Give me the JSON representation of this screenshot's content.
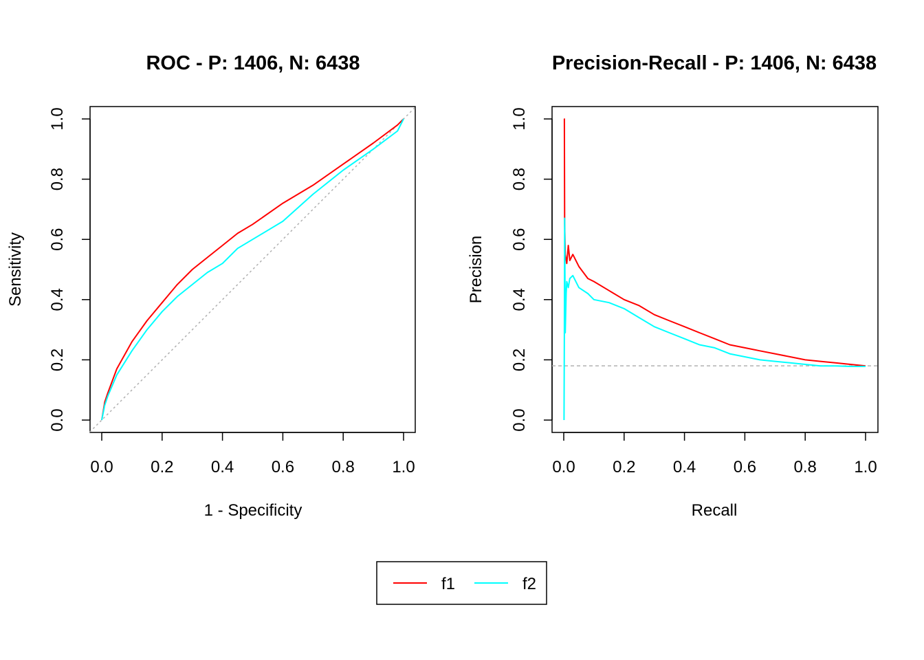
{
  "legend": {
    "entries": [
      {
        "name": "f1",
        "color": "#ff0000"
      },
      {
        "name": "f2",
        "color": "#00ffff"
      }
    ],
    "placement": "bottom-center"
  },
  "chart_data": [
    {
      "type": "line",
      "title": "ROC - P: 1406, N: 6438",
      "xlabel": "1 - Specificity",
      "ylabel": "Sensitivity",
      "xlim": [
        0,
        1
      ],
      "ylim": [
        0,
        1
      ],
      "xticks": [
        "0.0",
        "0.2",
        "0.4",
        "0.6",
        "0.8",
        "1.0"
      ],
      "yticks": [
        "0.0",
        "0.2",
        "0.4",
        "0.6",
        "0.8",
        "1.0"
      ],
      "grid": false,
      "reference_line": {
        "style": "dotted",
        "color": "#b0b0b0",
        "from": [
          0,
          0
        ],
        "to": [
          1,
          1
        ]
      },
      "series": [
        {
          "name": "f1",
          "color": "#ff0000",
          "x": [
            0,
            0.01,
            0.02,
            0.05,
            0.1,
            0.15,
            0.2,
            0.25,
            0.3,
            0.35,
            0.4,
            0.45,
            0.5,
            0.6,
            0.7,
            0.8,
            0.9,
            0.98,
            1
          ],
          "y": [
            0,
            0.06,
            0.09,
            0.17,
            0.26,
            0.33,
            0.39,
            0.45,
            0.5,
            0.54,
            0.58,
            0.62,
            0.65,
            0.72,
            0.78,
            0.85,
            0.92,
            0.98,
            1
          ]
        },
        {
          "name": "f2",
          "color": "#00ffff",
          "x": [
            0,
            0.01,
            0.02,
            0.05,
            0.1,
            0.15,
            0.2,
            0.25,
            0.3,
            0.35,
            0.4,
            0.45,
            0.5,
            0.6,
            0.7,
            0.8,
            0.9,
            0.98,
            1
          ],
          "y": [
            0,
            0.05,
            0.08,
            0.15,
            0.23,
            0.3,
            0.36,
            0.41,
            0.45,
            0.49,
            0.52,
            0.57,
            0.6,
            0.66,
            0.75,
            0.83,
            0.9,
            0.96,
            1
          ]
        }
      ]
    },
    {
      "type": "line",
      "title": "Precision-Recall - P: 1406, N: 6438",
      "xlabel": "Recall",
      "ylabel": "Precision",
      "xlim": [
        0,
        1
      ],
      "ylim": [
        0,
        1
      ],
      "xticks": [
        "0.0",
        "0.2",
        "0.4",
        "0.6",
        "0.8",
        "1.0"
      ],
      "yticks": [
        "0.0",
        "0.2",
        "0.4",
        "0.6",
        "0.8",
        "1.0"
      ],
      "grid": false,
      "reference_line": {
        "style": "dashed",
        "color": "#b0b0b0",
        "y": 0.18
      },
      "series": [
        {
          "name": "f1",
          "color": "#ff0000",
          "x": [
            0.001,
            0.002,
            0.003,
            0.005,
            0.01,
            0.015,
            0.02,
            0.03,
            0.05,
            0.08,
            0.1,
            0.15,
            0.2,
            0.25,
            0.3,
            0.35,
            0.4,
            0.45,
            0.5,
            0.55,
            0.6,
            0.65,
            0.7,
            0.75,
            0.8,
            0.85,
            0.9,
            0.95,
            1
          ],
          "y": [
            1.0,
            1.0,
            0.65,
            0.55,
            0.52,
            0.58,
            0.53,
            0.55,
            0.51,
            0.47,
            0.46,
            0.43,
            0.4,
            0.38,
            0.35,
            0.33,
            0.31,
            0.29,
            0.27,
            0.25,
            0.24,
            0.23,
            0.22,
            0.21,
            0.2,
            0.195,
            0.19,
            0.185,
            0.18
          ]
        },
        {
          "name": "f2",
          "color": "#00ffff",
          "x": [
            0.001,
            0.002,
            0.003,
            0.005,
            0.008,
            0.01,
            0.015,
            0.02,
            0.03,
            0.05,
            0.08,
            0.1,
            0.15,
            0.2,
            0.25,
            0.3,
            0.35,
            0.4,
            0.45,
            0.5,
            0.55,
            0.6,
            0.65,
            0.7,
            0.75,
            0.8,
            0.85,
            0.9,
            0.95,
            1
          ],
          "y": [
            0.0,
            0.3,
            0.67,
            0.29,
            0.42,
            0.46,
            0.44,
            0.47,
            0.48,
            0.44,
            0.42,
            0.4,
            0.39,
            0.37,
            0.34,
            0.31,
            0.29,
            0.27,
            0.25,
            0.24,
            0.22,
            0.21,
            0.2,
            0.195,
            0.19,
            0.185,
            0.18,
            0.18,
            0.178,
            0.178
          ]
        }
      ]
    }
  ]
}
